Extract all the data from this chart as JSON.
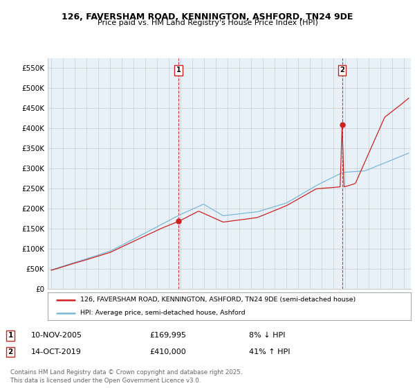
{
  "title": "126, FAVERSHAM ROAD, KENNINGTON, ASHFORD, TN24 9DE",
  "subtitle": "Price paid vs. HM Land Registry's House Price Index (HPI)",
  "ylim": [
    0,
    575000
  ],
  "yticks": [
    0,
    50000,
    100000,
    150000,
    200000,
    250000,
    300000,
    350000,
    400000,
    450000,
    500000,
    550000
  ],
  "ytick_labels": [
    "£0",
    "£50K",
    "£100K",
    "£150K",
    "£200K",
    "£250K",
    "£300K",
    "£350K",
    "£400K",
    "£450K",
    "£500K",
    "£550K"
  ],
  "hpi_color": "#7ab8d9",
  "price_color": "#cc2222",
  "marker1_price": 169995,
  "marker1_label": "1",
  "marker1_date_str": "10-NOV-2005",
  "marker1_amount": "£169,995",
  "marker1_hpi_note": "8% ↓ HPI",
  "marker2_price": 410000,
  "marker2_label": "2",
  "marker2_date_str": "14-OCT-2019",
  "marker2_amount": "£410,000",
  "marker2_hpi_note": "41% ↑ HPI",
  "legend_line1": "126, FAVERSHAM ROAD, KENNINGTON, ASHFORD, TN24 9DE (semi-detached house)",
  "legend_line2": "HPI: Average price, semi-detached house, Ashford",
  "footer": "Contains HM Land Registry data © Crown copyright and database right 2025.\nThis data is licensed under the Open Government Licence v3.0.",
  "background_color": "#ffffff",
  "chart_bg_color": "#e8f0f8",
  "grid_color": "#cccccc"
}
